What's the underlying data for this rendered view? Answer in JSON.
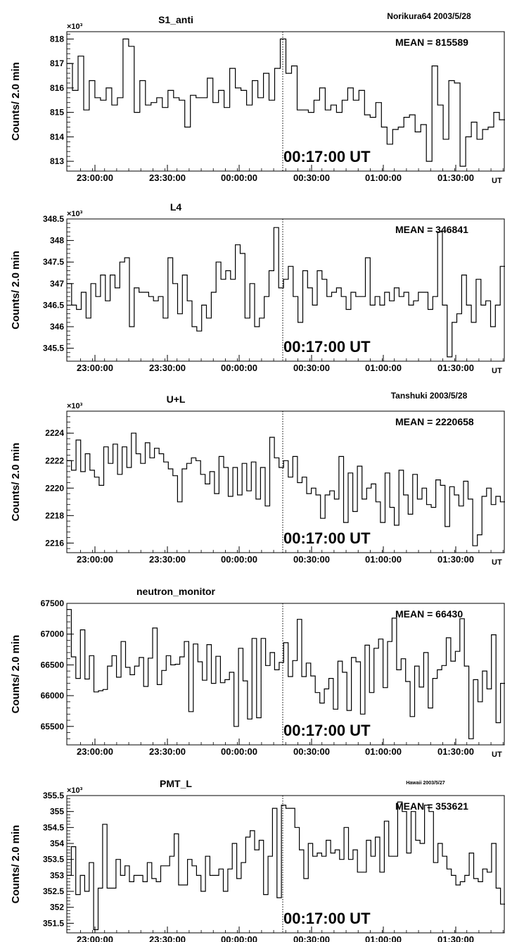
{
  "marker_label": "00:17:00 UT",
  "x_unit": "UT",
  "x_ticks": [
    "23:00:00",
    "23:30:00",
    "00:00:00",
    "00:30:00",
    "01:00:00",
    "01:30:00"
  ],
  "y_label": "Counts/ 2.0 min",
  "chart_data": [
    {
      "type": "line",
      "title": "S1_anti",
      "site_label": "Norikura64 2003/5/28",
      "mean_label": "MEAN = 815589",
      "ylabel": "Counts/ 2.0 min",
      "xlabel": "UT",
      "y_multiplier": "×10³",
      "x_start": "22:45:00",
      "x_end": "01:44:00",
      "marker": "00:17:00",
      "ylim": [
        812.6,
        818.3
      ],
      "y_ticks": [
        813,
        814,
        815,
        816,
        817,
        818
      ],
      "y_tick_labels": [
        "813",
        "814",
        "815",
        "816",
        "817",
        "818"
      ],
      "series": [
        {
          "values": [
            817.0,
            815.9,
            817.3,
            815.1,
            816.3,
            815.6,
            815.5,
            816.0,
            815.3,
            815.6,
            818.0,
            817.7,
            815.0,
            816.3,
            815.3,
            815.4,
            815.6,
            815.2,
            815.9,
            815.6,
            815.5,
            814.4,
            815.7,
            815.6,
            815.6,
            816.4,
            815.4,
            815.9,
            815.2,
            816.8,
            816.0,
            815.9,
            815.3,
            816.3,
            815.6,
            816.6,
            815.5,
            816.8,
            818.0,
            816.6,
            816.9,
            815.1,
            815.1,
            815.0,
            815.5,
            816.0,
            815.1,
            815.3,
            815.0,
            815.5,
            816.0,
            815.5,
            815.9,
            814.9,
            814.8,
            815.4,
            814.4,
            813.7,
            814.3,
            814.4,
            814.8,
            814.9,
            814.2,
            814.5,
            813.0,
            816.9,
            815.3,
            813.9,
            816.3,
            816.2,
            812.8,
            814.0,
            814.6,
            813.9,
            814.3,
            814.4,
            815.0,
            814.7
          ]
        }
      ]
    },
    {
      "type": "line",
      "title": "L4",
      "site_label": "",
      "mean_label": "MEAN = 346841",
      "ylabel": "Counts/ 2.0 min",
      "xlabel": "UT",
      "y_multiplier": "×10³",
      "x_start": "22:45:00",
      "x_end": "01:44:00",
      "marker": "00:17:00",
      "ylim": [
        345.2,
        348.5
      ],
      "y_ticks": [
        345.5,
        346,
        346.5,
        347,
        347.5,
        348,
        348.5
      ],
      "y_tick_labels": [
        "345.5",
        "346",
        "346.5",
        "347",
        "347.5",
        "348",
        "348.5"
      ],
      "series": [
        {
          "values": [
            347.0,
            346.5,
            346.4,
            346.8,
            346.2,
            347.0,
            346.7,
            347.2,
            346.6,
            347.2,
            346.9,
            347.5,
            347.6,
            346.0,
            346.9,
            346.8,
            346.8,
            346.7,
            346.6,
            346.7,
            346.2,
            347.6,
            347.0,
            346.3,
            347.2,
            346.6,
            346.0,
            345.9,
            346.5,
            346.2,
            346.8,
            347.5,
            347.1,
            347.3,
            347.1,
            347.9,
            347.7,
            346.2,
            347.0,
            346.0,
            346.2,
            346.7,
            347.3,
            348.3,
            346.9,
            347.1,
            347.4,
            346.7,
            346.1,
            347.3,
            346.9,
            346.5,
            347.3,
            347.1,
            346.7,
            346.8,
            346.9,
            346.7,
            346.4,
            346.8,
            346.7,
            346.7,
            347.6,
            346.5,
            346.7,
            346.5,
            346.8,
            346.6,
            346.9,
            346.7,
            346.8,
            346.5,
            346.6,
            346.8,
            346.8,
            346.4,
            346.7,
            348.2,
            346.5,
            345.3,
            346.1,
            346.3,
            347.2,
            346.5,
            346.1,
            347.1,
            346.5,
            346.6,
            346.0,
            346.5,
            347.4
          ]
        }
      ]
    },
    {
      "type": "line",
      "title": "U+L",
      "site_label": "Tanshuki 2003/5/28",
      "mean_label": "MEAN = 2220658",
      "ylabel": "Counts/ 2.0 min",
      "xlabel": "UT",
      "y_multiplier": "×10³",
      "x_start": "22:45:00",
      "x_end": "01:44:00",
      "marker": "00:17:00",
      "ylim": [
        2215.3,
        2225.6
      ],
      "y_ticks": [
        2216,
        2218,
        2220,
        2222,
        2224
      ],
      "y_tick_labels": [
        "2216",
        "2218",
        "2220",
        "2222",
        "2224"
      ],
      "series": [
        {
          "values": [
            2222.0,
            2221.3,
            2223.5,
            2221.2,
            2222.5,
            2221.3,
            2220.8,
            2220.2,
            2223.0,
            2221.8,
            2223.2,
            2221.0,
            2223.0,
            2221.5,
            2224.0,
            2222.5,
            2221.8,
            2223.3,
            2222.2,
            2222.9,
            2222.5,
            2221.9,
            2221.4,
            2220.9,
            2219.0,
            2221.4,
            2221.8,
            2222.2,
            2222.0,
            2221.0,
            2220.3,
            2221.2,
            2219.6,
            2222.3,
            2221.5,
            2219.4,
            2221.5,
            2219.5,
            2221.8,
            2219.8,
            2221.9,
            2219.2,
            2221.5,
            2218.7,
            2223.7,
            2222.2,
            2221.5,
            2222.0,
            2220.8,
            2222.3,
            2220.4,
            2220.8,
            2219.6,
            2220.0,
            2219.5,
            2217.8,
            2219.5,
            2219.8,
            2219.2,
            2222.3,
            2217.5,
            2221.1,
            2218.3,
            2221.6,
            2219.2,
            2220.0,
            2220.3,
            2219.0,
            2217.5,
            2221.1,
            2218.6,
            2217.3,
            2221.3,
            2219.5,
            2218.1,
            2221.0,
            2219.2,
            2220.0,
            2218.8,
            2218.6,
            2220.6,
            2220.2,
            2217.2,
            2220.1,
            2219.5,
            2218.7,
            2220.5,
            2219.2,
            2215.8,
            2216.6,
            2219.4,
            2220.0,
            2218.8,
            2219.4,
            2219.0
          ]
        }
      ]
    },
    {
      "type": "line",
      "title": "neutron_monitor",
      "site_label": "",
      "mean_label": "MEAN = 66430",
      "ylabel": "Counts/ 2.0 min",
      "xlabel": "UT",
      "y_multiplier": "",
      "x_start": "22:45:00",
      "x_end": "01:44:00",
      "marker": "00:17:00",
      "ylim": [
        65200,
        67500
      ],
      "y_ticks": [
        65500,
        66000,
        66500,
        67000,
        67500
      ],
      "y_tick_labels": [
        "65500",
        "66000",
        "66500",
        "67000",
        "67500"
      ],
      "series": [
        {
          "values": [
            67400,
            66630,
            66280,
            67070,
            66270,
            66650,
            66060,
            66080,
            66100,
            66480,
            66650,
            66300,
            66880,
            66460,
            66340,
            66480,
            66620,
            66150,
            66610,
            67100,
            66180,
            66410,
            66650,
            66500,
            66510,
            66630,
            66880,
            65740,
            66840,
            66550,
            66250,
            66830,
            66200,
            66640,
            66210,
            66260,
            66380,
            65500,
            66770,
            66240,
            65620,
            66930,
            65640,
            66930,
            66490,
            66700,
            66420,
            66540,
            66860,
            66310,
            66570,
            67240,
            66310,
            66530,
            66320,
            66050,
            65880,
            66110,
            66280,
            65780,
            66560,
            66380,
            65760,
            66620,
            66550,
            65700,
            66820,
            66050,
            66770,
            66920,
            66130,
            66880,
            67260,
            66420,
            66600,
            66230,
            65660,
            66480,
            66140,
            66700,
            65800,
            66280,
            66420,
            66490,
            66940,
            66560,
            66720,
            67250,
            66480,
            65300,
            66260,
            65900,
            66400,
            66110,
            66990,
            65560,
            66200
          ]
        }
      ]
    },
    {
      "type": "line",
      "title": "PMT_L",
      "site_label": "Hawaii 2003/5/27",
      "mean_label": "MEAN = 353621",
      "ylabel": "Counts/ 2.0 min",
      "xlabel": "UT",
      "y_multiplier": "×10³",
      "x_start": "22:45:00",
      "x_end": "01:44:00",
      "marker": "00:17:00",
      "ylim": [
        351.2,
        355.5
      ],
      "y_ticks": [
        351.5,
        352,
        352.5,
        353,
        353.5,
        354,
        354.5,
        355,
        355.5
      ],
      "y_tick_labels": [
        "351.5",
        "352",
        "352.5",
        "353",
        "353.5",
        "354",
        "354.5",
        "355",
        "355.5"
      ],
      "series": [
        {
          "values": [
            353.0,
            353.9,
            352.4,
            353.0,
            352.5,
            353.4,
            351.3,
            352.6,
            354.6,
            352.6,
            352.6,
            353.5,
            353.0,
            353.3,
            352.8,
            353.0,
            353.0,
            352.8,
            353.4,
            352.9,
            352.8,
            353.3,
            353.3,
            353.6,
            354.3,
            352.7,
            352.7,
            353.5,
            353.3,
            353.0,
            352.5,
            353.6,
            353.0,
            353.0,
            353.2,
            352.5,
            353.2,
            354.0,
            352.9,
            353.4,
            354.2,
            354.4,
            353.8,
            354.1,
            352.4,
            353.6,
            355.1,
            352.3,
            355.2,
            355.1,
            355.1,
            354.5,
            353.8,
            352.9,
            354.0,
            353.6,
            353.7,
            353.6,
            354.1,
            353.7,
            353.8,
            353.5,
            354.5,
            353.5,
            353.8,
            353.1,
            353.1,
            354.1,
            353.6,
            354.2,
            353.1,
            354.7,
            353.6,
            353.6,
            355.3,
            355.0,
            353.7,
            355.0,
            354.1,
            354.0,
            355.2,
            355.0,
            353.4,
            354.0,
            353.6,
            353.2,
            353.0,
            352.7,
            352.8,
            353.0,
            353.7,
            352.9,
            352.8,
            353.2,
            353.1,
            354.0,
            352.6,
            352.1
          ]
        }
      ]
    }
  ]
}
